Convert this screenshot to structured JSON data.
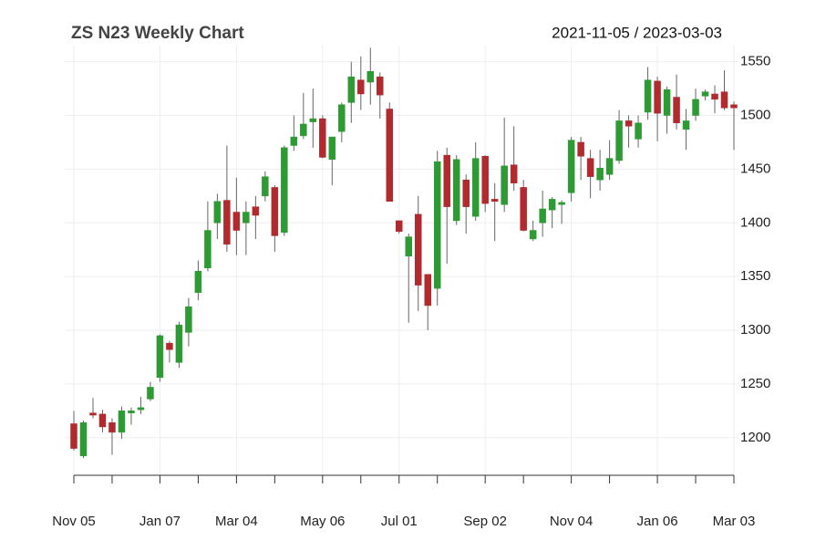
{
  "chart_data": {
    "type": "candlestick",
    "title": "ZS N23 Weekly Chart",
    "subtitle": "2021-11-05 / 2023-03-03",
    "categories": [
      "Nov 05",
      null,
      null,
      null,
      null,
      null,
      null,
      null,
      null,
      "Jan 07",
      null,
      null,
      null,
      null,
      null,
      null,
      null,
      "Mar 04",
      null,
      null,
      null,
      null,
      null,
      null,
      null,
      null,
      "May 06",
      null,
      null,
      null,
      null,
      null,
      null,
      null,
      "Jul 01",
      null,
      null,
      null,
      null,
      null,
      null,
      null,
      null,
      "Sep 02",
      null,
      null,
      null,
      null,
      null,
      null,
      null,
      null,
      "Nov 04",
      null,
      null,
      null,
      null,
      null,
      null,
      null,
      null,
      "Jan 06",
      null,
      null,
      null,
      null,
      null,
      null,
      null,
      "Mar 03"
    ],
    "open": [
      1213,
      1183,
      1223,
      1222,
      1214,
      1205,
      1223,
      1226,
      1236,
      1256,
      1288,
      1270,
      1298,
      1335,
      1358,
      1400,
      1421,
      1410,
      1400,
      1415,
      1425,
      1433,
      1391,
      1472,
      1481,
      1494,
      1497,
      1459,
      1485,
      1512,
      1533,
      1531,
      1536,
      1506,
      1402,
      1369,
      1408,
      1352,
      1339,
      1463,
      1402,
      1440,
      1406,
      1462,
      1422,
      1417,
      1454,
      1433,
      1385,
      1400,
      1412,
      1417,
      1428,
      1475,
      1460,
      1440,
      1445,
      1458,
      1495,
      1478,
      1503,
      1532,
      1500,
      1517,
      1487,
      1500,
      1518,
      1520,
      1522,
      1510
    ],
    "high": [
      1225,
      1216,
      1237,
      1226,
      1218,
      1229,
      1228,
      1238,
      1252,
      1296,
      1290,
      1308,
      1330,
      1365,
      1420,
      1427,
      1472,
      1442,
      1420,
      1425,
      1448,
      1435,
      1472,
      1500,
      1521,
      1525,
      1500,
      1480,
      1512,
      1550,
      1555,
      1563,
      1540,
      1512,
      1402,
      1390,
      1425,
      1352,
      1467,
      1470,
      1463,
      1445,
      1475,
      1463,
      1437,
      1498,
      1490,
      1440,
      1402,
      1430,
      1424,
      1421,
      1480,
      1480,
      1468,
      1468,
      1477,
      1505,
      1500,
      1500,
      1545,
      1536,
      1527,
      1538,
      1506,
      1525,
      1524,
      1528,
      1542,
      1513
    ],
    "low": [
      1188,
      1181,
      1218,
      1205,
      1184,
      1199,
      1212,
      1222,
      1234,
      1252,
      1270,
      1265,
      1285,
      1328,
      1355,
      1385,
      1373,
      1370,
      1370,
      1385,
      1420,
      1373,
      1388,
      1467,
      1478,
      1470,
      1460,
      1435,
      1475,
      1493,
      1505,
      1510,
      1497,
      1420,
      1390,
      1307,
      1318,
      1300,
      1323,
      1362,
      1398,
      1390,
      1402,
      1410,
      1383,
      1410,
      1430,
      1392,
      1383,
      1387,
      1395,
      1399,
      1420,
      1440,
      1423,
      1430,
      1440,
      1455,
      1470,
      1470,
      1496,
      1476,
      1483,
      1487,
      1468,
      1495,
      1514,
      1502,
      1505,
      1468
    ],
    "close": [
      1190,
      1214,
      1221,
      1210,
      1205,
      1225,
      1225,
      1228,
      1247,
      1295,
      1282,
      1305,
      1322,
      1355,
      1393,
      1420,
      1380,
      1393,
      1410,
      1407,
      1443,
      1388,
      1470,
      1480,
      1492,
      1497,
      1461,
      1480,
      1510,
      1536,
      1520,
      1541,
      1519,
      1420,
      1392,
      1387,
      1342,
      1323,
      1457,
      1415,
      1459,
      1415,
      1460,
      1418,
      1420,
      1453,
      1437,
      1393,
      1393,
      1413,
      1422,
      1419,
      1477,
      1462,
      1443,
      1451,
      1460,
      1495,
      1490,
      1493,
      1533,
      1502,
      1524,
      1493,
      1495,
      1515,
      1522,
      1515,
      1507,
      1507
    ],
    "up_color": "#2e9a33",
    "down_color": "#b02a2e",
    "ylim": [
      1165,
      1565
    ],
    "yticks": [
      1200,
      1250,
      1300,
      1350,
      1400,
      1450,
      1500,
      1550
    ],
    "grid": true
  }
}
